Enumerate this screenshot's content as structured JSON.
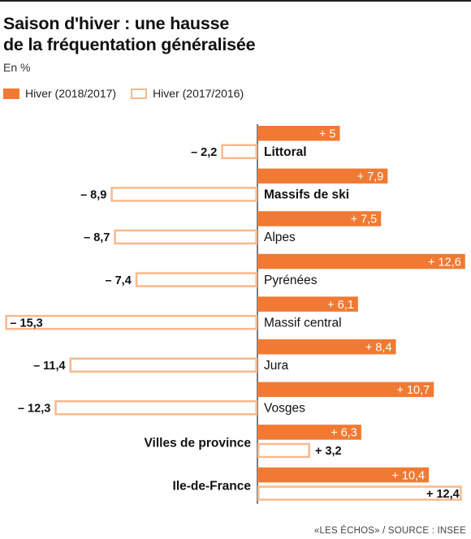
{
  "title_line1": "Saison d'hiver : une hausse",
  "title_line2": "de la fréquentation généralisée",
  "subtitle": "En %",
  "legend": [
    {
      "label": "Hiver (2018/2017)",
      "style": "filled",
      "color": "#f07a33"
    },
    {
      "label": "Hiver (2017/2016)",
      "style": "outline",
      "color": "#f7b98e"
    }
  ],
  "source": "«LES ÉCHOS» / SOURCE : INSEE",
  "chart_data": {
    "type": "bar",
    "orientation": "horizontal",
    "categories": [
      "Littoral",
      "Massifs de ski",
      "Alpes",
      "Pyrénées",
      "Massif central",
      "Jura",
      "Vosges",
      "Villes de province",
      "Ile-de-France"
    ],
    "category_bold": [
      true,
      true,
      false,
      false,
      false,
      false,
      false,
      true,
      true
    ],
    "series": [
      {
        "name": "Hiver (2018/2017)",
        "values": [
          5,
          7.9,
          7.5,
          12.6,
          6.1,
          8.4,
          10.7,
          6.3,
          10.4
        ]
      },
      {
        "name": "Hiver (2017/2016)",
        "values": [
          -2.2,
          -8.9,
          -8.7,
          -7.4,
          -15.3,
          -11.4,
          -12.3,
          3.2,
          12.4
        ]
      }
    ],
    "value_labels": [
      [
        "+ 5",
        "+ 7,9",
        "+ 7,5",
        "+ 12,6",
        "+ 6,1",
        "+ 8,4",
        "+ 10,7",
        "+ 6,3",
        "+ 10,4"
      ],
      [
        "– 2,2",
        "– 8,9",
        "– 8,7",
        "– 7,4",
        "– 15,3",
        "– 11,4",
        "– 12,3",
        "+ 3,2",
        "+ 12,4"
      ]
    ],
    "colors": {
      "current": "#f07a33",
      "previous": "#f7b98e",
      "axis": "#222222"
    }
  }
}
